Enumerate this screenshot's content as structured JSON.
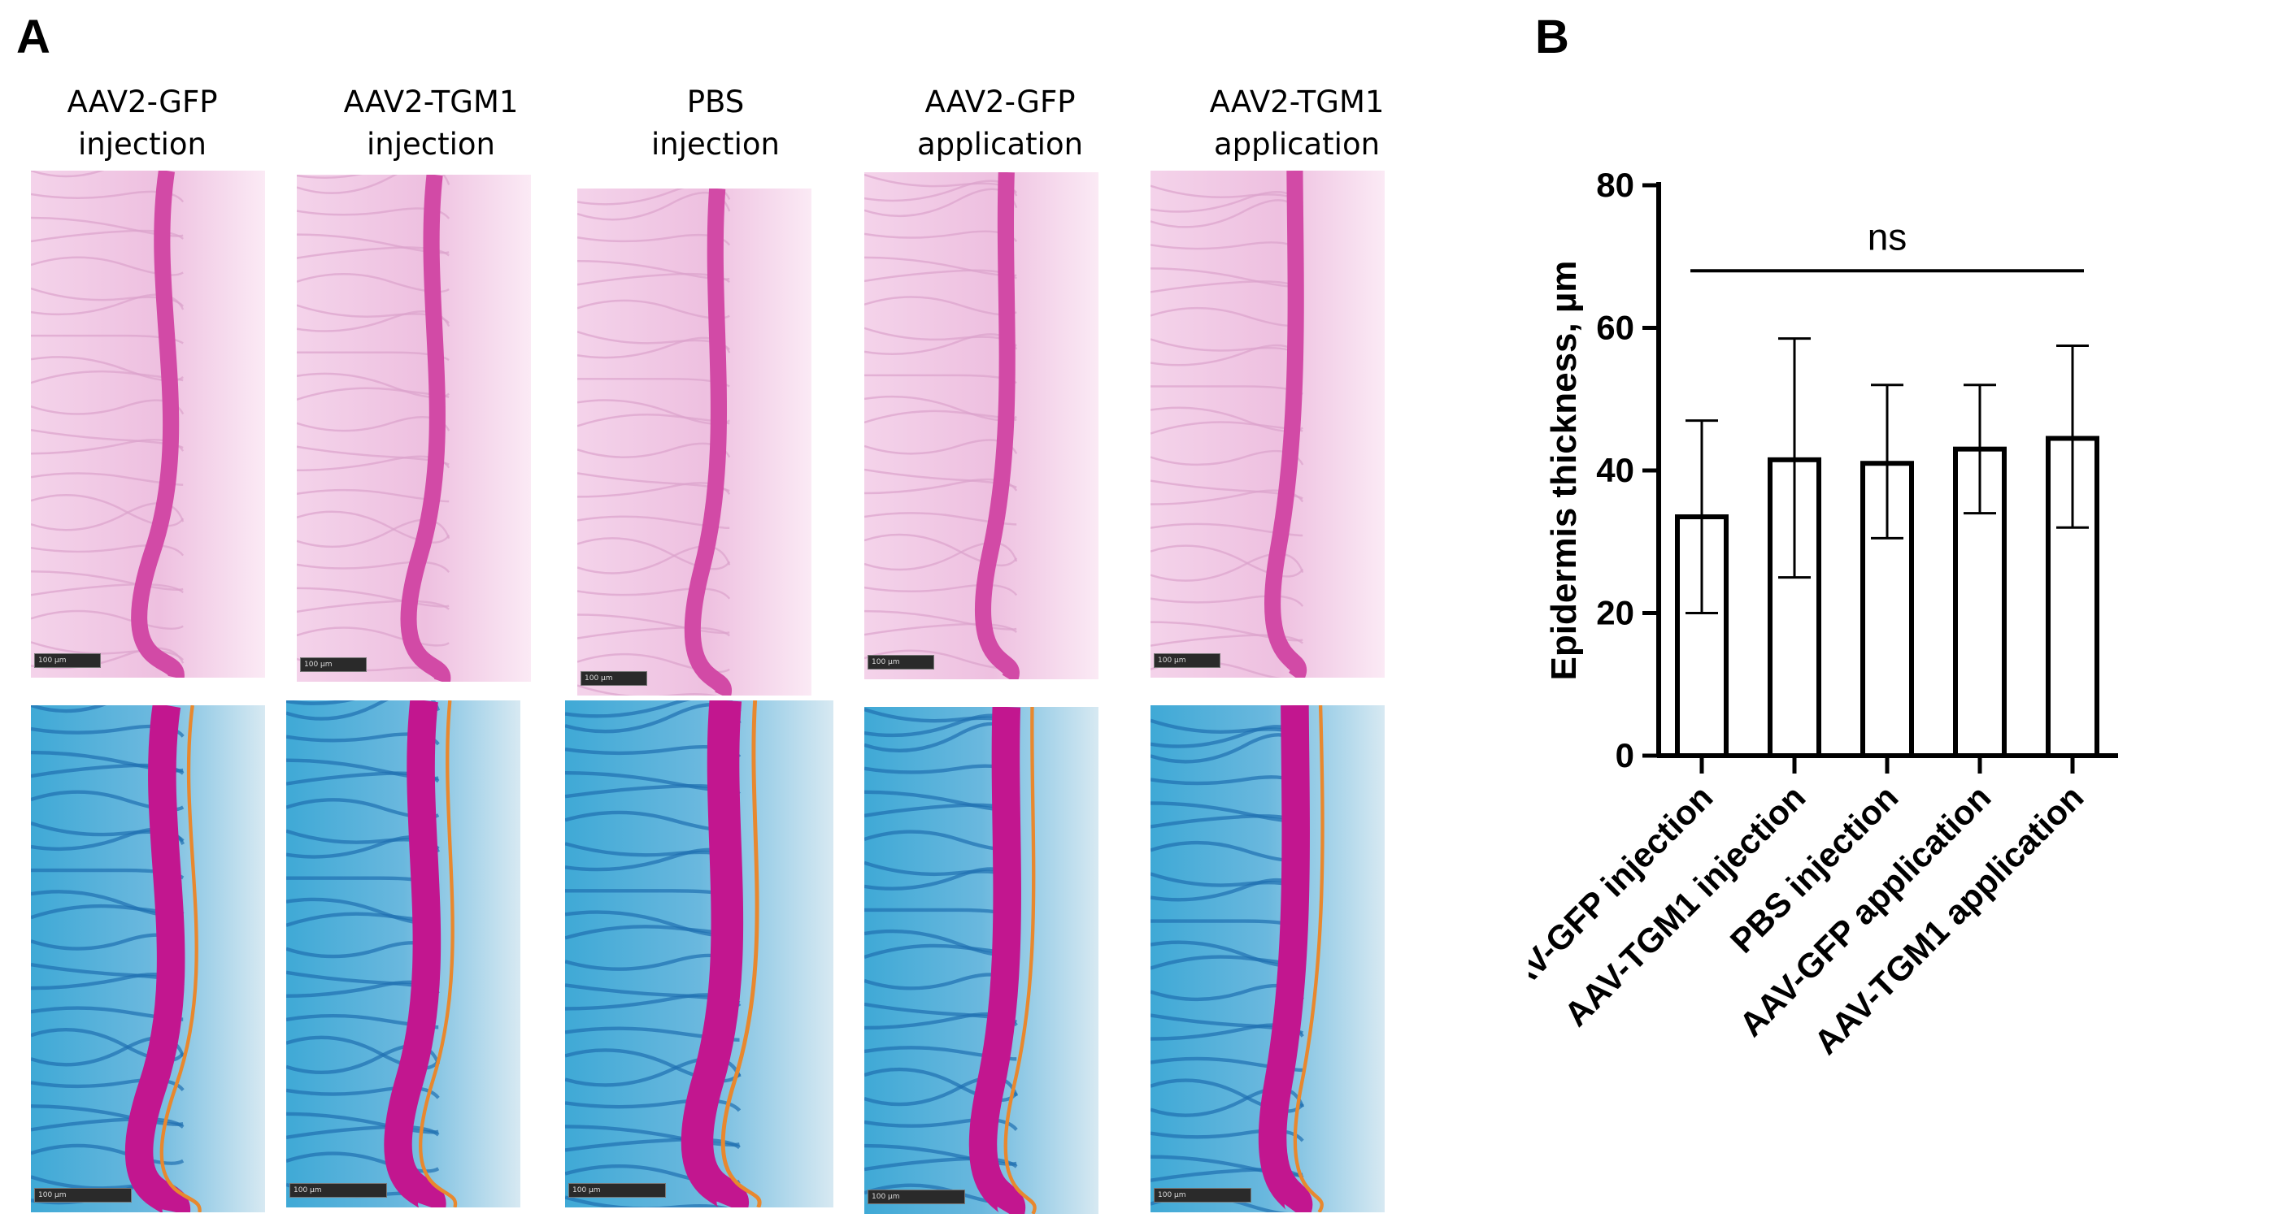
{
  "panels": {
    "a": "A",
    "b": "B"
  },
  "columns": [
    {
      "line1": "AAV2-GFP",
      "line2": "injection"
    },
    {
      "line1": "AAV2-TGM1",
      "line2": "injection"
    },
    {
      "line1": "PBS",
      "line2": "injection"
    },
    {
      "line1": "AAV2-GFP",
      "line2": "application"
    },
    {
      "line1": "AAV2-TGM1",
      "line2": "application"
    }
  ],
  "scalebar_label": "100 µm",
  "chart_data": {
    "type": "bar",
    "categories": [
      "AAV-GFP injection",
      "AAV-TGM1 injection",
      "PBS injection",
      "AAV-GFP application",
      "AAV-TGM1 application"
    ],
    "values": [
      33.5,
      41.5,
      41,
      43,
      44.5
    ],
    "error_low": [
      20,
      25,
      30.5,
      34,
      32
    ],
    "error_high": [
      47,
      58.5,
      52,
      52,
      57.5
    ],
    "ylabel": "Epidermis thickness, µm",
    "ylim": [
      0,
      80
    ],
    "yticks": [
      0,
      20,
      40,
      60,
      80
    ],
    "annotation": "ns",
    "bar_fill": "#ffffff",
    "bar_stroke": "#000000"
  }
}
